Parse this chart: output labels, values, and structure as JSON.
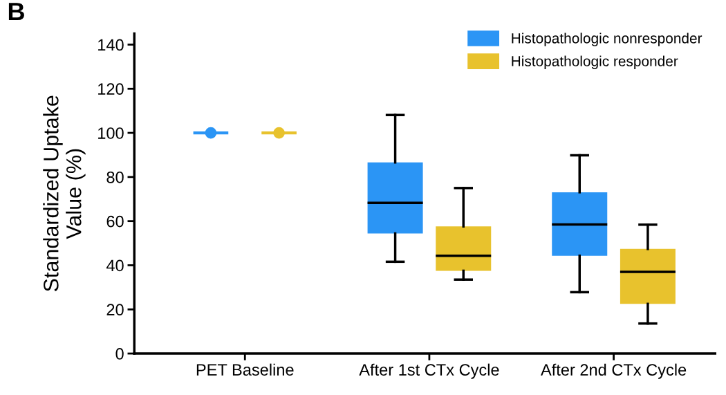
{
  "chart_data": {
    "type": "box",
    "title": "B",
    "ylabel": "Standardized Uptake\nValue (%)",
    "categories": [
      "PET Baseline",
      "After 1st CTx Cycle",
      "After 2nd CTx Cycle"
    ],
    "series": [
      {
        "name": "Histopathologic nonresponder",
        "color": "#2b95f5",
        "boxes": [
          {
            "low": 100,
            "q1": 100,
            "median": 100,
            "q3": 100,
            "high": 100,
            "mean": 100
          },
          {
            "low": 41.6,
            "q1": 54.4,
            "median": 68.3,
            "q3": 86.6,
            "high": 108.1
          },
          {
            "low": 27.8,
            "q1": 44.3,
            "median": 58.5,
            "q3": 73.1,
            "high": 89.8
          }
        ]
      },
      {
        "name": "Histopathologic responder",
        "color": "#e8c22d",
        "boxes": [
          {
            "low": 100,
            "q1": 100,
            "median": 100,
            "q3": 100,
            "high": 100,
            "mean": 100
          },
          {
            "low": 33.5,
            "q1": 37.5,
            "median": 44.3,
            "q3": 57.6,
            "high": 75.0
          },
          {
            "low": 13.6,
            "q1": 22.5,
            "median": 37.0,
            "q3": 47.4,
            "high": 58.4
          }
        ]
      }
    ],
    "ylim": [
      0,
      145
    ],
    "yticks": [
      0,
      20,
      40,
      60,
      80,
      100,
      120,
      140
    ],
    "legend": "top right",
    "grid": false
  }
}
